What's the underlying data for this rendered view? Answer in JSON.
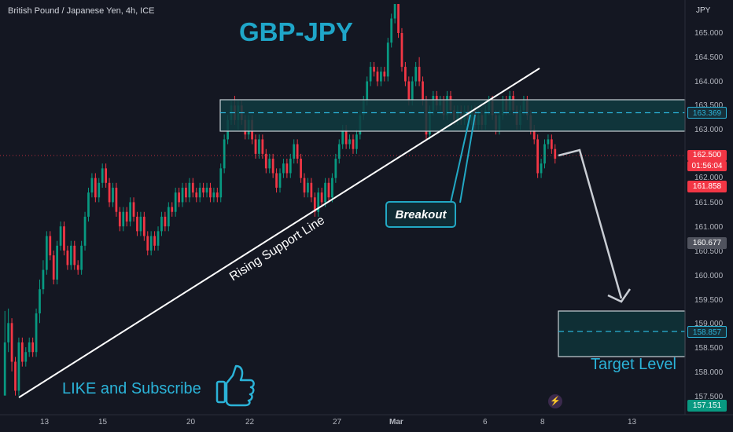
{
  "header": {
    "symbol_title": "British Pound / Japanese Yen, 4h, ICE",
    "currency": "JPY"
  },
  "annotations": {
    "title": "GBP-JPY",
    "breakout": "Breakout",
    "rising_support": "Rising Support Line",
    "like_subscribe": "LIKE and Subscribe",
    "target_level": "Target Level"
  },
  "icons": {
    "like": "thumbs-up-icon",
    "replay": "lightning-icon"
  },
  "colors": {
    "background": "#141722",
    "up_candle": "#089981",
    "down_candle": "#f23645",
    "accent": "#1fa6c9",
    "zone_fill": "#0f3b3f",
    "zone_border": "#c9d1d6"
  },
  "price_axis": {
    "ticks": [
      "165.000",
      "164.500",
      "164.000",
      "163.500",
      "163.000",
      "162.500",
      "162.000",
      "161.500",
      "161.000",
      "160.500",
      "160.000",
      "159.500",
      "159.000",
      "158.500",
      "158.000",
      "157.500"
    ],
    "tags": {
      "zone_top": "163.369",
      "current_price": "162.500",
      "countdown": "01:56:04",
      "high_red": "161.858",
      "mid_gray": "160.677",
      "target": "158.857",
      "low_green": "157.151"
    }
  },
  "time_axis": [
    "13",
    "15",
    "20",
    "22",
    "27",
    "Mar",
    "6",
    "8",
    "13"
  ],
  "chart_data": {
    "type": "candlestick",
    "title": "GBP-JPY",
    "ylabel": "JPY",
    "ylim": [
      157.05,
      165.6
    ],
    "x_range": [
      0,
      196
    ],
    "current_price": 162.5,
    "resistance_zone": [
      163.0,
      163.65
    ],
    "target_zone": [
      158.35,
      159.3
    ],
    "support_line": {
      "from": [
        4,
        157.55
      ],
      "to": [
        154,
        164.1
      ]
    },
    "projection": [
      [
        165,
        162.65
      ],
      [
        178,
        159.45
      ]
    ],
    "candles": [
      [
        157.5,
        158.6,
        159.25,
        157.5
      ],
      [
        158.6,
        159.0,
        159.3,
        158.4
      ],
      [
        159.0,
        158.2,
        159.1,
        158.0
      ],
      [
        158.2,
        157.6,
        158.3,
        157.5
      ],
      [
        157.6,
        158.6,
        158.7,
        157.5
      ],
      [
        158.6,
        158.2,
        158.7,
        158.1
      ],
      [
        158.2,
        158.4,
        158.5,
        158.1
      ],
      [
        158.4,
        158.6,
        158.7,
        158.3
      ],
      [
        158.6,
        158.4,
        158.7,
        158.3
      ],
      [
        158.4,
        159.2,
        159.3,
        158.3
      ],
      [
        159.2,
        159.7,
        159.9,
        159.0
      ],
      [
        159.7,
        160.1,
        160.3,
        159.6
      ],
      [
        160.1,
        160.8,
        160.9,
        160.0
      ],
      [
        160.8,
        160.4,
        160.9,
        160.3
      ],
      [
        160.4,
        159.9,
        160.5,
        159.8
      ],
      [
        159.9,
        160.6,
        160.7,
        159.8
      ],
      [
        160.6,
        161.0,
        161.1,
        160.5
      ],
      [
        161.0,
        160.5,
        161.1,
        160.4
      ],
      [
        160.5,
        160.2,
        160.6,
        160.1
      ],
      [
        160.2,
        160.6,
        160.7,
        160.1
      ],
      [
        160.6,
        160.2,
        160.7,
        160.1
      ],
      [
        160.2,
        160.1,
        160.3,
        160.0
      ],
      [
        160.1,
        160.6,
        160.7,
        160.0
      ],
      [
        160.6,
        161.2,
        161.3,
        160.5
      ],
      [
        161.2,
        161.7,
        161.8,
        161.1
      ],
      [
        161.7,
        162.0,
        162.1,
        161.6
      ],
      [
        162.0,
        161.6,
        162.1,
        161.5
      ],
      [
        161.6,
        161.9,
        162.0,
        161.5
      ],
      [
        161.9,
        162.2,
        162.3,
        161.8
      ],
      [
        162.2,
        161.9,
        162.3,
        161.8
      ],
      [
        161.9,
        161.5,
        162.0,
        161.4
      ],
      [
        161.5,
        161.8,
        161.9,
        161.4
      ],
      [
        161.8,
        161.3,
        161.9,
        161.2
      ],
      [
        161.3,
        161.0,
        161.4,
        160.9
      ],
      [
        161.0,
        161.3,
        161.4,
        160.9
      ],
      [
        161.3,
        161.1,
        161.4,
        161.0
      ],
      [
        161.1,
        161.5,
        161.6,
        161.0
      ],
      [
        161.5,
        161.2,
        161.6,
        161.1
      ],
      [
        161.2,
        160.9,
        161.3,
        160.8
      ],
      [
        160.9,
        161.2,
        161.3,
        160.8
      ],
      [
        161.2,
        160.8,
        161.3,
        160.7
      ],
      [
        160.8,
        160.5,
        160.9,
        160.4
      ],
      [
        160.5,
        160.8,
        160.9,
        160.4
      ],
      [
        160.8,
        160.6,
        160.9,
        160.5
      ],
      [
        160.6,
        160.9,
        161.0,
        160.5
      ],
      [
        160.9,
        161.2,
        161.3,
        160.8
      ],
      [
        161.2,
        161.0,
        161.3,
        160.9
      ],
      [
        161.0,
        161.4,
        161.5,
        160.9
      ],
      [
        161.4,
        161.3,
        161.5,
        161.2
      ],
      [
        161.3,
        161.7,
        161.8,
        161.2
      ],
      [
        161.7,
        161.5,
        161.8,
        161.4
      ],
      [
        161.5,
        161.8,
        161.9,
        161.4
      ],
      [
        161.8,
        161.6,
        161.9,
        161.5
      ],
      [
        161.6,
        161.9,
        162.0,
        161.5
      ],
      [
        161.9,
        161.7,
        162.0,
        161.6
      ],
      [
        161.7,
        161.6,
        161.8,
        161.5
      ],
      [
        161.6,
        161.8,
        161.9,
        161.5
      ],
      [
        161.8,
        161.7,
        161.9,
        161.6
      ],
      [
        161.7,
        161.8,
        161.9,
        161.6
      ],
      [
        161.8,
        161.6,
        161.9,
        161.5
      ],
      [
        161.6,
        161.7,
        161.8,
        161.5
      ],
      [
        161.7,
        161.6,
        161.8,
        161.5
      ],
      [
        161.6,
        162.2,
        162.3,
        161.5
      ],
      [
        162.2,
        162.8,
        162.9,
        162.1
      ],
      [
        162.8,
        163.2,
        163.3,
        162.7
      ],
      [
        163.2,
        163.5,
        163.6,
        163.1
      ],
      [
        163.5,
        163.2,
        163.7,
        163.1
      ],
      [
        163.2,
        163.5,
        163.6,
        163.0
      ],
      [
        163.5,
        163.2,
        163.6,
        163.1
      ],
      [
        163.2,
        162.9,
        163.3,
        162.8
      ],
      [
        162.9,
        163.2,
        163.3,
        162.8
      ],
      [
        163.2,
        162.8,
        163.3,
        162.7
      ],
      [
        162.8,
        162.5,
        162.9,
        162.4
      ],
      [
        162.5,
        162.8,
        162.9,
        162.4
      ],
      [
        162.8,
        162.5,
        162.9,
        162.4
      ],
      [
        162.5,
        162.2,
        162.6,
        162.1
      ],
      [
        162.2,
        162.4,
        162.5,
        162.1
      ],
      [
        162.4,
        162.1,
        162.5,
        162.0
      ],
      [
        162.1,
        161.8,
        162.2,
        161.7
      ],
      [
        161.8,
        162.1,
        162.2,
        161.7
      ],
      [
        162.1,
        162.3,
        162.4,
        162.0
      ],
      [
        162.3,
        162.1,
        162.4,
        162.0
      ],
      [
        162.1,
        162.4,
        162.5,
        162.0
      ],
      [
        162.4,
        162.7,
        162.8,
        162.3
      ],
      [
        162.7,
        162.4,
        162.8,
        162.3
      ],
      [
        162.4,
        162.0,
        162.5,
        161.9
      ],
      [
        162.0,
        161.7,
        162.1,
        161.6
      ],
      [
        161.7,
        161.9,
        162.0,
        161.6
      ],
      [
        161.9,
        161.6,
        162.0,
        161.5
      ],
      [
        161.6,
        161.3,
        161.7,
        161.2
      ],
      [
        161.3,
        161.7,
        161.8,
        161.2
      ],
      [
        161.7,
        161.5,
        161.8,
        161.4
      ],
      [
        161.5,
        161.9,
        162.0,
        161.4
      ],
      [
        161.9,
        161.6,
        162.0,
        161.5
      ],
      [
        161.6,
        162.0,
        162.1,
        161.5
      ],
      [
        162.0,
        162.4,
        162.5,
        161.9
      ],
      [
        162.4,
        162.7,
        162.8,
        162.3
      ],
      [
        162.7,
        163.0,
        163.1,
        162.6
      ],
      [
        163.0,
        162.7,
        163.1,
        162.6
      ],
      [
        162.7,
        162.8,
        162.9,
        162.6
      ],
      [
        162.8,
        162.6,
        162.9,
        162.5
      ],
      [
        162.6,
        162.9,
        163.0,
        162.5
      ],
      [
        162.9,
        163.3,
        163.4,
        162.8
      ],
      [
        163.3,
        163.6,
        163.7,
        163.2
      ],
      [
        163.6,
        164.0,
        164.1,
        163.5
      ],
      [
        164.0,
        164.3,
        164.4,
        163.9
      ],
      [
        164.3,
        164.2,
        164.4,
        164.1
      ],
      [
        164.2,
        164.0,
        164.3,
        163.9
      ],
      [
        164.0,
        164.2,
        164.3,
        163.9
      ],
      [
        164.2,
        164.1,
        164.3,
        164.0
      ],
      [
        164.1,
        164.8,
        164.9,
        164.0
      ],
      [
        164.8,
        165.3,
        165.4,
        164.7
      ],
      [
        165.3,
        165.6,
        165.6,
        165.2
      ],
      [
        165.6,
        165.0,
        165.6,
        164.9
      ],
      [
        165.0,
        164.3,
        165.1,
        164.2
      ],
      [
        164.3,
        164.0,
        164.4,
        163.9
      ],
      [
        164.0,
        163.6,
        164.1,
        163.5
      ],
      [
        163.6,
        164.0,
        164.1,
        163.5
      ],
      [
        164.0,
        164.3,
        164.4,
        163.9
      ],
      [
        164.3,
        164.0,
        164.5,
        163.9
      ],
      [
        164.0,
        163.6,
        164.1,
        163.5
      ],
      [
        163.6,
        162.9,
        163.7,
        162.8
      ],
      [
        162.9,
        163.4,
        163.5,
        162.8
      ],
      [
        163.4,
        163.7,
        163.8,
        163.3
      ],
      [
        163.7,
        163.5,
        163.8,
        163.4
      ],
      [
        163.5,
        163.6,
        163.7,
        163.4
      ],
      [
        163.6,
        163.3,
        163.7,
        163.2
      ],
      [
        163.3,
        163.7,
        163.8,
        163.2
      ],
      [
        163.7,
        163.4,
        163.8,
        163.3
      ],
      [
        163.4,
        163.2,
        163.5,
        163.1
      ],
      [
        163.2,
        163.4,
        163.5,
        163.1
      ],
      [
        163.4,
        163.2,
        163.5,
        163.1
      ],
      [
        163.2,
        163.4,
        163.5,
        163.1
      ],
      [
        163.4,
        163.2,
        163.5,
        163.1
      ],
      [
        163.2,
        163.4,
        163.5,
        163.1
      ],
      [
        163.4,
        163.1,
        163.5,
        163.0
      ],
      [
        163.1,
        163.3,
        163.4,
        163.0
      ],
      [
        163.3,
        163.1,
        163.4,
        163.0
      ],
      [
        163.1,
        163.4,
        163.5,
        163.0
      ],
      [
        163.4,
        163.6,
        163.7,
        163.3
      ],
      [
        163.6,
        163.3,
        163.7,
        163.2
      ],
      [
        163.3,
        163.0,
        163.4,
        162.9
      ],
      [
        163.0,
        163.3,
        163.4,
        162.9
      ],
      [
        163.3,
        163.6,
        163.7,
        163.2
      ],
      [
        163.6,
        163.4,
        163.7,
        163.3
      ],
      [
        163.4,
        163.7,
        163.8,
        163.3
      ],
      [
        163.7,
        163.4,
        163.8,
        163.3
      ],
      [
        163.4,
        163.1,
        163.5,
        163.0
      ],
      [
        163.1,
        163.4,
        163.5,
        163.0
      ],
      [
        163.4,
        163.6,
        163.7,
        163.3
      ],
      [
        163.6,
        163.3,
        163.7,
        163.2
      ],
      [
        163.3,
        163.0,
        163.4,
        162.9
      ],
      [
        163.0,
        162.8,
        163.1,
        162.7
      ],
      [
        162.8,
        162.1,
        162.9,
        162.0
      ],
      [
        162.1,
        162.3,
        162.4,
        162.0
      ],
      [
        162.3,
        162.7,
        162.8,
        162.2
      ],
      [
        162.7,
        162.8,
        162.9,
        162.6
      ],
      [
        162.8,
        162.6,
        162.9,
        162.5
      ],
      [
        162.6,
        162.4,
        162.7,
        162.3
      ]
    ]
  }
}
